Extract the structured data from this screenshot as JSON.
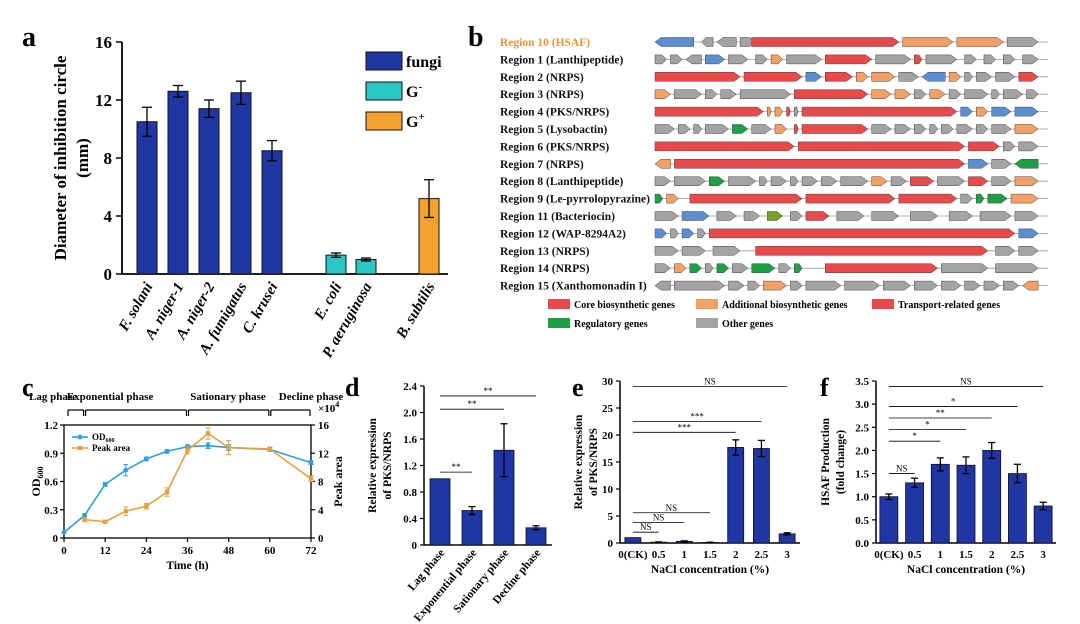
{
  "colors": {
    "fungi": "#2136a5",
    "gneg": "#2ac7c4",
    "gpos": "#f6a233",
    "bar_blue": "#2136a5",
    "od_line": "#2f9fe0",
    "peak_line": "#e5a040",
    "core": "#e84a4a",
    "additional": "#f2a066",
    "transport": "#e84a4a",
    "regulatory": "#1e9e45",
    "other": "#a3a3a3",
    "blue_gene": "#5b8ed0",
    "olive_gene": "#7aa02a",
    "region10_label": "#e8963c"
  },
  "chart_data": [
    {
      "panel": "a",
      "type": "bar",
      "ylabel": "Diameter of inhibition circle (mm)",
      "ylabel_line1": "Diameter of inhibition circle",
      "ylabel_line2": "(mm)",
      "ylim": [
        0,
        16
      ],
      "yticks": [
        "0",
        "4",
        "8",
        "12",
        "16"
      ],
      "categories": [
        "F. solani",
        "A. niger-1",
        "A. niger-2",
        "A. fumigatus",
        "C. krusei",
        "E. coli",
        "P. aeruginosa",
        "B. subtilis"
      ],
      "groups": [
        "fungi",
        "fungi",
        "fungi",
        "fungi",
        "fungi",
        "gneg",
        "gneg",
        "gpos"
      ],
      "values": [
        10.5,
        12.6,
        11.4,
        12.5,
        8.5,
        1.3,
        1.0,
        5.2
      ],
      "errors": [
        1.0,
        0.4,
        0.6,
        0.8,
        0.7,
        0.15,
        0.1,
        1.3
      ],
      "legend": [
        {
          "key": "fungi",
          "label": "fungi"
        },
        {
          "key": "gneg",
          "label": "G",
          "sup": "-"
        },
        {
          "key": "gpos",
          "label": "G",
          "sup": "+"
        }
      ]
    },
    {
      "panel": "c",
      "type": "line",
      "xlabel": "Time (h)",
      "ylabel_left": "OD",
      "ylabel_left_sub": "600",
      "ylabel_right": "Peak area",
      "xticks": [
        0,
        12,
        24,
        36,
        48,
        60,
        72
      ],
      "xlim": [
        0,
        72
      ],
      "ylim_left": [
        0,
        1.2
      ],
      "yticks_left": [
        "0",
        "0.3",
        "0.6",
        "0.9",
        "1.2"
      ],
      "ylim_right": [
        0,
        16
      ],
      "yticks_right": [
        "0",
        "4",
        "8",
        "12",
        "16"
      ],
      "right_multiplier": "×10",
      "right_multiplier_exp": "4",
      "phases": [
        "Lag phase",
        "Exponential phase",
        "Sationary phase",
        "Decline phase"
      ],
      "phase_bounds": [
        [
          0,
          6
        ],
        [
          6,
          36
        ],
        [
          36,
          60
        ],
        [
          60,
          72
        ]
      ],
      "series": [
        {
          "name": "OD600",
          "label": "OD",
          "label_sub": "600",
          "axis": "left",
          "x": [
            0,
            6,
            12,
            18,
            24,
            30,
            36,
            42,
            48,
            60,
            72
          ],
          "y": [
            0.06,
            0.24,
            0.57,
            0.72,
            0.84,
            0.92,
            0.97,
            0.98,
            0.96,
            0.94,
            0.8
          ],
          "err": [
            0.01,
            0.02,
            0.02,
            0.06,
            0.02,
            0.02,
            0.02,
            0.03,
            0.03,
            0.02,
            0.02
          ]
        },
        {
          "name": "Peak area",
          "label": "Peak area",
          "axis": "right",
          "x": [
            6,
            12,
            18,
            24,
            30,
            36,
            42,
            48,
            60,
            72
          ],
          "y": [
            2.6,
            2.3,
            3.8,
            4.5,
            6.5,
            12.4,
            14.8,
            12.8,
            12.6,
            8.4
          ],
          "err": [
            0.3,
            0.2,
            0.6,
            0.4,
            0.6,
            0.5,
            0.8,
            1.0,
            0.3,
            0.4
          ]
        }
      ]
    },
    {
      "panel": "d",
      "type": "bar",
      "ylabel": "Relative expression of PKS/NRPS",
      "ylabel_line1": "Relative expression",
      "ylabel_line2": "of PKS/NRPS",
      "ylim": [
        0,
        2.4
      ],
      "yticks": [
        "0",
        "0.4",
        "0.8",
        "1.2",
        "1.6",
        "2.0",
        "2.4"
      ],
      "categories": [
        "Lag phase",
        "Exponential phase",
        "Sationary phase",
        "Decline phase"
      ],
      "values": [
        1.0,
        0.52,
        1.43,
        0.26
      ],
      "errors": [
        0.0,
        0.06,
        0.4,
        0.03
      ],
      "significance": [
        {
          "from": 0,
          "to": 1,
          "label": "**",
          "y": 1.1
        },
        {
          "from": 0,
          "to": 2,
          "label": "**",
          "y": 2.05
        },
        {
          "from": 0,
          "to": 3,
          "label": "**",
          "y": 2.25
        }
      ]
    },
    {
      "panel": "e",
      "type": "bar",
      "xlabel": "NaCl concentration (%)",
      "ylabel": "Relative expression of PKS/NRPS",
      "ylabel_line1": "Relative expression",
      "ylabel_line2": "of PKS/NRPS",
      "ylim": [
        0,
        30
      ],
      "yticks": [
        "0",
        "5",
        "10",
        "15",
        "20",
        "25",
        "30"
      ],
      "categories": [
        "0(CK)",
        "0.5",
        "1",
        "1.5",
        "2",
        "2.5",
        "3"
      ],
      "values": [
        1.0,
        0.15,
        0.3,
        0.1,
        17.7,
        17.5,
        1.7
      ],
      "errors": [
        0.0,
        0.05,
        0.1,
        0.05,
        1.4,
        1.5,
        0.2
      ],
      "significance": [
        {
          "from": 0,
          "to": 1,
          "label": "NS",
          "y": 2.0
        },
        {
          "from": 0,
          "to": 2,
          "label": "NS",
          "y": 3.8
        },
        {
          "from": 0,
          "to": 3,
          "label": "NS",
          "y": 5.6
        },
        {
          "from": 0,
          "to": 4,
          "label": "***",
          "y": 20.5
        },
        {
          "from": 0,
          "to": 5,
          "label": "***",
          "y": 22.5
        },
        {
          "from": 0,
          "to": 6,
          "label": "NS",
          "y": 29.0
        }
      ]
    },
    {
      "panel": "f",
      "type": "bar",
      "xlabel": "NaCl concentration (%)",
      "ylabel": "HSAF Production (fold change)",
      "ylabel_line1": "HSAF Production",
      "ylabel_line2": "(fold change)",
      "ylim": [
        0,
        3.5
      ],
      "yticks": [
        "0.0",
        "0.5",
        "1.0",
        "1.5",
        "2.0",
        "2.5",
        "3.0",
        "3.5"
      ],
      "categories": [
        "0(CK)",
        "0.5",
        "1",
        "1.5",
        "2",
        "2.5",
        "3"
      ],
      "values": [
        1.0,
        1.3,
        1.7,
        1.68,
        2.0,
        1.5,
        0.8
      ],
      "errors": [
        0.06,
        0.1,
        0.14,
        0.18,
        0.17,
        0.2,
        0.08
      ],
      "significance": [
        {
          "from": 0,
          "to": 1,
          "label": "NS",
          "y": 1.5
        },
        {
          "from": 0,
          "to": 2,
          "label": "*",
          "y": 2.2
        },
        {
          "from": 0,
          "to": 3,
          "label": "*",
          "y": 2.45
        },
        {
          "from": 0,
          "to": 4,
          "label": "**",
          "y": 2.7
        },
        {
          "from": 0,
          "to": 5,
          "label": "*",
          "y": 2.95
        },
        {
          "from": 0,
          "to": 6,
          "label": "NS",
          "y": 3.38
        }
      ]
    }
  ],
  "panel_b": {
    "regions": [
      {
        "label": "Region 10 (HSAF)",
        "highlight": true
      },
      {
        "label": "Region 1 (Lanthipeptide)"
      },
      {
        "label": "Region 2 (NRPS)"
      },
      {
        "label": "Region 3 (NRPS)"
      },
      {
        "label": "Region 4 (PKS/NRPS)"
      },
      {
        "label": "Region 5 (Lysobactin)"
      },
      {
        "label": "Region 6 (PKS/NRPS)"
      },
      {
        "label": "Region 7 (NRPS)"
      },
      {
        "label": "Region 8 (Lanthipeptide)"
      },
      {
        "label": "Region 9 (Le-pyrrolopyrazine)"
      },
      {
        "label": "Region 11 (Bacteriocin)"
      },
      {
        "label": "Region 12 (WAP-8294A2)"
      },
      {
        "label": "Region 13 (NRPS)"
      },
      {
        "label": "Region 14 (NRPS)"
      },
      {
        "label": "Region 15 (Xanthomonadin I)"
      }
    ],
    "legend": [
      {
        "key": "core",
        "label": "Core biosynthetic genes"
      },
      {
        "key": "additional",
        "label": "Additional biosynthetic genes"
      },
      {
        "key": "transport",
        "label": "Transport-related genes"
      },
      {
        "key": "regulatory",
        "label": "Regulatory genes"
      },
      {
        "key": "other",
        "label": "Other genes"
      }
    ]
  },
  "panel_letters": [
    "a",
    "b",
    "c",
    "d",
    "e",
    "f"
  ]
}
